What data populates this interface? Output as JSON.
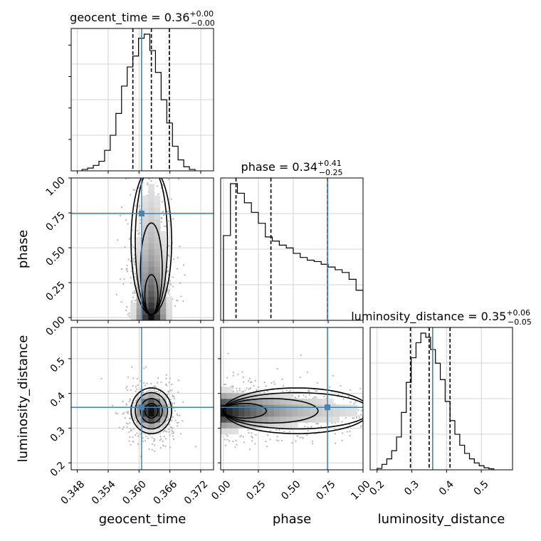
{
  "chart_data": {
    "type": "corner",
    "parameters": [
      "geocent_time",
      "phase",
      "luminosity_distance"
    ],
    "truths": {
      "geocent_time": 0.3605,
      "phase": 0.745,
      "luminosity_distance": 0.36
    },
    "colors": {
      "truth": "#4682b4",
      "hist": "#000000",
      "grid": "#c8c8c8"
    },
    "titles": {
      "geocent_time": {
        "name": "geocent_time",
        "value": "0.36",
        "plus": "+0.00",
        "minus": "−0.00"
      },
      "phase": {
        "name": "phase",
        "value": "0.34",
        "plus": "+0.41",
        "minus": "−0.25"
      },
      "luminosity_distance": {
        "name": "luminosity_distance",
        "value": "0.35",
        "plus": "+0.06",
        "minus": "−0.05"
      }
    },
    "axis_labels": {
      "geocent_time": "geocent_time",
      "phase": "phase",
      "luminosity_distance": "luminosity_distance"
    },
    "ranges": {
      "geocent_time": [
        0.3468,
        0.3745
      ],
      "phase": [
        -0.02,
        1.0
      ],
      "luminosity_distance": [
        0.18,
        0.59
      ]
    },
    "ticks": {
      "geocent_time": {
        "values": [
          0.348,
          0.354,
          0.36,
          0.366,
          0.372
        ],
        "labels": [
          "0.348",
          "0.354",
          "0.360",
          "0.366",
          "0.372"
        ]
      },
      "phase": {
        "values": [
          0.0,
          0.25,
          0.5,
          0.75,
          1.0
        ],
        "labels": [
          "0.00",
          "0.25",
          "0.50",
          "0.75",
          "1.00"
        ]
      },
      "luminosity_distance": {
        "values": [
          0.2,
          0.3,
          0.4,
          0.5
        ],
        "labels": [
          "0.2",
          "0.3",
          "0.4",
          "0.5"
        ]
      }
    },
    "quantiles": {
      "geocent_time": [
        0.3588,
        0.3624,
        0.3659
      ],
      "phase": [
        0.09,
        0.34,
        0.745
      ],
      "luminosity_distance": [
        0.296,
        0.35,
        0.41
      ]
    },
    "histograms": {
      "geocent_time": {
        "edges": [
          0.3489,
          0.35,
          0.3511,
          0.3522,
          0.3533,
          0.3544,
          0.3555,
          0.3566,
          0.3577,
          0.3588,
          0.3599,
          0.361,
          0.3621,
          0.3632,
          0.3643,
          0.3654,
          0.3665,
          0.3676,
          0.3687,
          0.3698,
          0.3709
        ],
        "counts": [
          0.01,
          0.02,
          0.04,
          0.07,
          0.15,
          0.26,
          0.42,
          0.62,
          0.76,
          0.84,
          0.97,
          1.0,
          0.88,
          0.72,
          0.52,
          0.35,
          0.18,
          0.08,
          0.03,
          0.01
        ]
      },
      "phase": {
        "edges": [
          0.0,
          0.05,
          0.1,
          0.15,
          0.2,
          0.25,
          0.3,
          0.35,
          0.4,
          0.45,
          0.5,
          0.55,
          0.6,
          0.65,
          0.7,
          0.75,
          0.8,
          0.85,
          0.9,
          0.95,
          1.0
        ],
        "counts": [
          0.62,
          1.0,
          0.93,
          0.86,
          0.79,
          0.71,
          0.61,
          0.58,
          0.55,
          0.53,
          0.49,
          0.46,
          0.44,
          0.43,
          0.41,
          0.39,
          0.37,
          0.35,
          0.3,
          0.22
        ]
      },
      "luminosity_distance": {
        "edges": [
          0.2,
          0.214,
          0.228,
          0.242,
          0.256,
          0.27,
          0.284,
          0.298,
          0.312,
          0.326,
          0.34,
          0.354,
          0.368,
          0.382,
          0.396,
          0.41,
          0.424,
          0.438,
          0.452,
          0.466,
          0.48,
          0.494,
          0.508,
          0.522,
          0.536
        ],
        "counts": [
          0.01,
          0.04,
          0.08,
          0.14,
          0.24,
          0.42,
          0.64,
          0.82,
          0.93,
          1.0,
          0.97,
          0.88,
          0.78,
          0.66,
          0.5,
          0.36,
          0.26,
          0.18,
          0.12,
          0.08,
          0.05,
          0.03,
          0.015,
          0.008
        ]
      }
    },
    "joint": {
      "phase_vs_geocent_time": {
        "x_mean": 0.3624,
        "y_mode": 0.1,
        "x_sd": 0.0018
      },
      "luminosity_distance_vs_geocent_time": {
        "x_mean": 0.3624,
        "y_mean": 0.35,
        "x_sd": 0.0018,
        "y_sd": 0.03
      },
      "luminosity_distance_vs_phase": {
        "x_mode": 0.1,
        "y_mean": 0.35,
        "y_sd": 0.03
      }
    }
  }
}
